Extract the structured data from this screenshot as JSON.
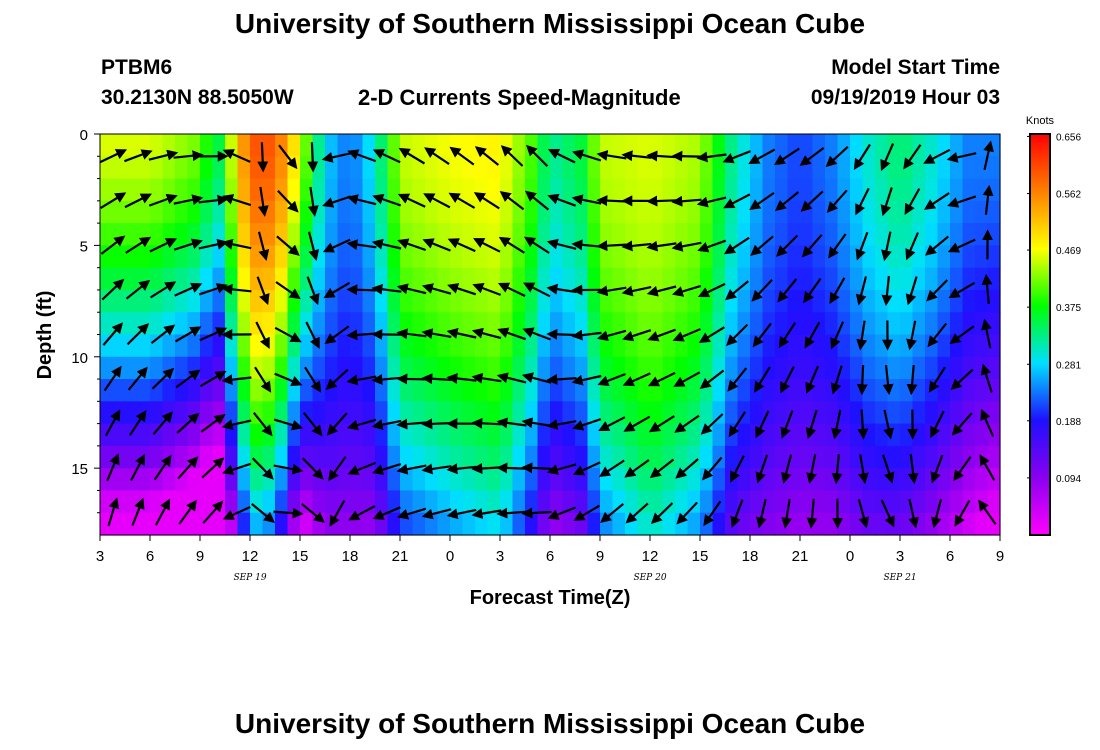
{
  "page": {
    "title_top": "University of Southern Mississippi Ocean Cube",
    "title_bottom": "University of Southern Mississippi Ocean Cube",
    "station_id": "PTBM6",
    "station_coords": "30.2130N 88.5050W",
    "chart_subtitle": "2-D Currents Speed-Magnitude",
    "model_start_label": "Model Start Time",
    "model_start_value": "09/19/2019 Hour 03"
  },
  "colors": {
    "colormap": [
      "#ff00ff",
      "#8a00f0",
      "#1e10ff",
      "#00e0ff",
      "#00ff00",
      "#ffff00",
      "#ff8000",
      "#ff0000"
    ]
  },
  "chart_data": {
    "type": "heatmap",
    "title": "2-D Currents Speed-Magnitude",
    "xlabel": "Forecast Time(Z)",
    "ylabel": "Depth (ft)",
    "x_ticks": [
      "3",
      "6",
      "9",
      "12",
      "15",
      "18",
      "21",
      "0",
      "3",
      "6",
      "9",
      "12",
      "15",
      "18",
      "21",
      "0",
      "3",
      "6",
      "9"
    ],
    "x_hours": [
      0,
      3,
      6,
      9,
      12,
      15,
      18,
      21,
      24,
      27,
      30,
      33,
      36,
      39,
      42,
      45,
      48,
      51,
      54
    ],
    "date_labels": [
      {
        "text": "SEP 19",
        "hour": 9
      },
      {
        "text": "SEP 20",
        "hour": 33
      },
      {
        "text": "SEP 21",
        "hour": 48
      }
    ],
    "y_ticks": [
      "0",
      "5",
      "10",
      "15"
    ],
    "y_tick_values": [
      0,
      5,
      10,
      15
    ],
    "ylim": [
      0,
      18
    ],
    "y_inverted": true,
    "colorbar": {
      "unit": "Knots",
      "ticks": [
        "0.656",
        "0.562",
        "0.469",
        "0.375",
        "0.281",
        "0.188",
        "0.094"
      ],
      "tick_values": [
        0.656,
        0.562,
        0.469,
        0.375,
        0.281,
        0.188,
        0.094
      ],
      "vmin": 0.0,
      "vmax": 0.66
    },
    "columns": [
      {
        "hour": 0,
        "surface_speed": 0.46,
        "decay": 0.28,
        "v_angle": 28
      },
      {
        "hour": 3,
        "surface_speed": 0.46,
        "decay": 0.28,
        "v_angle": 18
      },
      {
        "hour": 6,
        "surface_speed": 0.42,
        "decay": 0.3,
        "v_angle": 2
      },
      {
        "hour": 7,
        "surface_speed": 0.34,
        "decay": 0.28,
        "v_angle": 0
      },
      {
        "hour": 9,
        "surface_speed": 0.6,
        "decay": 0.17,
        "v_angle": 250
      },
      {
        "hour": 10.5,
        "surface_speed": 0.6,
        "decay": 0.2,
        "v_angle": 295
      },
      {
        "hour": 12,
        "surface_speed": 0.46,
        "decay": 0.26,
        "v_angle": 320
      },
      {
        "hour": 13.5,
        "surface_speed": 0.28,
        "decay": 0.06,
        "v_angle": 225
      },
      {
        "hour": 15,
        "surface_speed": 0.23,
        "decay": 0.02,
        "v_angle": 160
      },
      {
        "hour": 16.5,
        "surface_speed": 0.3,
        "decay": 0.08,
        "v_angle": 160
      },
      {
        "hour": 18,
        "surface_speed": 0.45,
        "decay": 0.1,
        "v_angle": 150
      },
      {
        "hour": 21,
        "surface_speed": 0.47,
        "decay": 0.08,
        "v_angle": 145
      },
      {
        "hour": 24,
        "surface_speed": 0.48,
        "decay": 0.06,
        "v_angle": 140
      },
      {
        "hour": 26,
        "surface_speed": 0.4,
        "decay": 0.09,
        "v_angle": 130
      },
      {
        "hour": 27,
        "surface_speed": 0.32,
        "decay": 0.1,
        "v_angle": 150
      },
      {
        "hour": 29,
        "surface_speed": 0.36,
        "decay": 0.1,
        "v_angle": 160
      },
      {
        "hour": 30,
        "surface_speed": 0.45,
        "decay": 0.08,
        "v_angle": 170
      },
      {
        "hour": 33,
        "surface_speed": 0.46,
        "decay": 0.03,
        "v_angle": 175
      },
      {
        "hour": 36,
        "surface_speed": 0.44,
        "decay": 0.06,
        "v_angle": 180
      },
      {
        "hour": 38,
        "surface_speed": 0.32,
        "decay": 0.06,
        "v_angle": 200
      },
      {
        "hour": 40,
        "surface_speed": 0.24,
        "decay": 0.02,
        "v_angle": 210
      },
      {
        "hour": 42,
        "surface_speed": 0.21,
        "decay": 0.01,
        "v_angle": 215
      },
      {
        "hour": 44,
        "surface_speed": 0.24,
        "decay": 0.03,
        "v_angle": 220
      },
      {
        "hour": 46,
        "surface_speed": 0.3,
        "decay": 0.05,
        "v_angle": 240
      },
      {
        "hour": 48,
        "surface_speed": 0.34,
        "decay": 0.08,
        "v_angle": 250
      },
      {
        "hour": 50,
        "surface_speed": 0.3,
        "decay": 0.08,
        "v_angle": 210
      },
      {
        "hour": 52,
        "surface_speed": 0.24,
        "decay": 0.07,
        "v_angle": 190
      },
      {
        "hour": 54,
        "surface_speed": 0.24,
        "decay": 0.1,
        "v_angle": 10
      }
    ]
  }
}
